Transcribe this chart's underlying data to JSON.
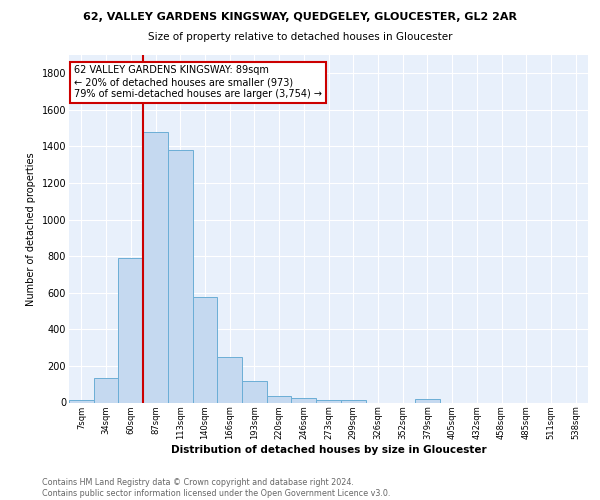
{
  "title_line1": "62, VALLEY GARDENS KINGSWAY, QUEDGELEY, GLOUCESTER, GL2 2AR",
  "title_line2": "Size of property relative to detached houses in Gloucester",
  "xlabel": "Distribution of detached houses by size in Gloucester",
  "ylabel": "Number of detached properties",
  "bar_labels": [
    "7sqm",
    "34sqm",
    "60sqm",
    "87sqm",
    "113sqm",
    "140sqm",
    "166sqm",
    "193sqm",
    "220sqm",
    "246sqm",
    "273sqm",
    "299sqm",
    "326sqm",
    "352sqm",
    "379sqm",
    "405sqm",
    "432sqm",
    "458sqm",
    "485sqm",
    "511sqm",
    "538sqm"
  ],
  "bar_values": [
    15,
    135,
    790,
    1480,
    1380,
    575,
    248,
    115,
    35,
    25,
    15,
    15,
    0,
    0,
    20,
    0,
    0,
    0,
    0,
    0,
    0
  ],
  "bar_color": "#c5d9f0",
  "bar_edge_color": "#6baed6",
  "background_color": "#e8f0fb",
  "grid_color": "#ffffff",
  "vline_x_index": 3,
  "vline_color": "#cc0000",
  "annotation_text": "62 VALLEY GARDENS KINGSWAY: 89sqm\n← 20% of detached houses are smaller (973)\n79% of semi-detached houses are larger (3,754) →",
  "annotation_box_color": "#ffffff",
  "annotation_box_edge_color": "#cc0000",
  "footer_text": "Contains HM Land Registry data © Crown copyright and database right 2024.\nContains public sector information licensed under the Open Government Licence v3.0.",
  "ylim": [
    0,
    1900
  ],
  "yticks": [
    0,
    200,
    400,
    600,
    800,
    1000,
    1200,
    1400,
    1600,
    1800
  ]
}
